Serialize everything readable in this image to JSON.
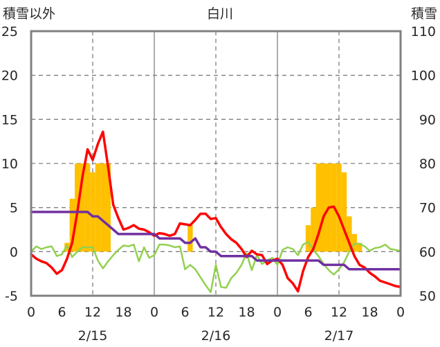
{
  "chart_data": {
    "type": "bar+line",
    "title": "白川",
    "ylabel_left": "積雪以外",
    "ylabel_right": "積雪",
    "ylim_left": [
      -5,
      25
    ],
    "ylim_right": [
      50,
      110
    ],
    "yticks_left": [
      "-5",
      "0",
      "5",
      "10",
      "15",
      "20",
      "25"
    ],
    "yticks_right": [
      "50",
      "60",
      "70",
      "80",
      "90",
      "100",
      "110"
    ],
    "xlim": [
      0,
      72
    ],
    "xticks": [
      "0",
      "6",
      "12",
      "18",
      "0",
      "6",
      "12",
      "18",
      "0",
      "6",
      "12",
      "18",
      "0"
    ],
    "day_labels": [
      "2/15",
      "2/16",
      "2/17"
    ],
    "grid": "dashed vertical at 12h, solid at day boundaries, dashed horizontal every 5",
    "colors": {
      "bars": "#FFC000",
      "red_line": "#FF0000",
      "green_line": "#92D050",
      "purple_line": "#7030A0",
      "frame": "#808080"
    },
    "bars": {
      "axis": "left",
      "x": [
        7,
        8,
        9,
        10,
        11,
        12,
        13,
        14,
        15,
        31,
        54,
        55,
        56,
        57,
        58,
        59,
        60,
        61,
        62,
        63,
        64
      ],
      "values": [
        1,
        6,
        10,
        10,
        10,
        9,
        10,
        10,
        10,
        3,
        3,
        5,
        10,
        10,
        10,
        10,
        10,
        9,
        4,
        2,
        1
      ]
    },
    "series": [
      {
        "axis": "left",
        "color": "red",
        "x": [
          0,
          1,
          2,
          3,
          4,
          5,
          6,
          7,
          8,
          9,
          10,
          11,
          12,
          13,
          14,
          15,
          16,
          17,
          18,
          19,
          20,
          21,
          22,
          23,
          24,
          25,
          26,
          27,
          28,
          29,
          30,
          31,
          32,
          33,
          34,
          35,
          36,
          37,
          38,
          39,
          40,
          41,
          42,
          43,
          44,
          45,
          46,
          47,
          48,
          49,
          50,
          51,
          52,
          53,
          54,
          55,
          56,
          57,
          58,
          59,
          60,
          61,
          62,
          63,
          64,
          65,
          66,
          67,
          68,
          69,
          70,
          71,
          72
        ],
        "values": [
          -0.3,
          -0.8,
          -1.1,
          -1.3,
          -1.8,
          -2.5,
          -2.1,
          -0.8,
          1,
          4.5,
          8.5,
          11.6,
          10.4,
          12.2,
          13.6,
          9.6,
          5.3,
          3.8,
          2.5,
          2.7,
          3,
          2.6,
          2.5,
          2.2,
          1.8,
          2.1,
          2,
          1.8,
          2,
          3.2,
          3.1,
          3,
          3.6,
          4.3,
          4.3,
          3.7,
          3.8,
          2.8,
          2,
          1.4,
          1,
          0.3,
          -0.6,
          0.1,
          -0.3,
          -0.4,
          -1.4,
          -1,
          -0.8,
          -1.5,
          -3,
          -3.6,
          -4.5,
          -2.2,
          -0.6,
          0.3,
          2,
          4,
          5,
          5.1,
          4,
          2.5,
          1,
          -0.5,
          -1.5,
          -1.8,
          -2.4,
          -2.8,
          -3.3,
          -3.5,
          -3.7,
          -3.9,
          -4
        ]
      },
      {
        "axis": "left",
        "color": "green",
        "x": [
          0,
          1,
          2,
          3,
          4,
          5,
          6,
          7,
          8,
          9,
          10,
          11,
          12,
          13,
          14,
          15,
          16,
          17,
          18,
          19,
          20,
          21,
          22,
          23,
          24,
          25,
          26,
          27,
          28,
          29,
          30,
          31,
          32,
          33,
          34,
          35,
          36,
          37,
          38,
          39,
          40,
          41,
          42,
          43,
          44,
          45,
          46,
          47,
          48,
          49,
          50,
          51,
          52,
          53,
          54,
          55,
          56,
          57,
          58,
          59,
          60,
          61,
          62,
          63,
          64,
          65,
          66,
          67,
          68,
          69,
          70,
          71,
          72
        ],
        "values": [
          0,
          0.6,
          0.3,
          0.5,
          0.6,
          -0.5,
          -0.3,
          0.7,
          -0.6,
          0,
          0.5,
          0.5,
          0.5,
          -1,
          -1.9,
          -1.1,
          -0.4,
          0.2,
          0.7,
          0.6,
          0.8,
          -1.1,
          0.5,
          -0.7,
          -0.4,
          0.8,
          0.8,
          0.7,
          0.5,
          0.6,
          -2,
          -1.5,
          -2,
          -2.9,
          -3.8,
          -4.6,
          -1.5,
          -4,
          -4.1,
          -3,
          -2.4,
          -1.5,
          -0.2,
          -2.1,
          -0.4,
          -1.4,
          -1,
          -0.7,
          -1.5,
          0.2,
          0.5,
          0.3,
          -0.4,
          0.8,
          1.1,
          0.2,
          -0.5,
          -1.4,
          -2.1,
          -2.6,
          -2,
          -1.2,
          0,
          0.9,
          0.9,
          0.6,
          0.1,
          0.4,
          0.5,
          0.8,
          0.3,
          0.2,
          0.1
        ]
      },
      {
        "axis": "right",
        "color": "purple",
        "x": [
          0,
          1,
          2,
          3,
          4,
          5,
          6,
          7,
          8,
          9,
          10,
          11,
          12,
          13,
          14,
          15,
          16,
          17,
          18,
          19,
          20,
          21,
          22,
          23,
          24,
          25,
          26,
          27,
          28,
          29,
          30,
          31,
          32,
          33,
          34,
          35,
          36,
          37,
          38,
          39,
          40,
          41,
          42,
          43,
          44,
          45,
          46,
          47,
          48,
          49,
          50,
          51,
          52,
          53,
          54,
          55,
          56,
          57,
          58,
          59,
          60,
          61,
          62,
          63,
          64,
          65,
          66,
          67,
          68,
          69,
          70,
          71,
          72
        ],
        "values": [
          69,
          69,
          69,
          69,
          69,
          69,
          69,
          69,
          69,
          69,
          69,
          69,
          68,
          68,
          67,
          66,
          65,
          64,
          64,
          64,
          64,
          64,
          64,
          64,
          64,
          63,
          63,
          63,
          63,
          63,
          62,
          62,
          63,
          61,
          61,
          60,
          60,
          59,
          59,
          59,
          59,
          59,
          59,
          59,
          58,
          58,
          58,
          58,
          58,
          58,
          58,
          58,
          58,
          58,
          58,
          58,
          58,
          57,
          57,
          57,
          57,
          57,
          56,
          56,
          56,
          56,
          56,
          56,
          56,
          56,
          56,
          56,
          56
        ]
      }
    ]
  }
}
